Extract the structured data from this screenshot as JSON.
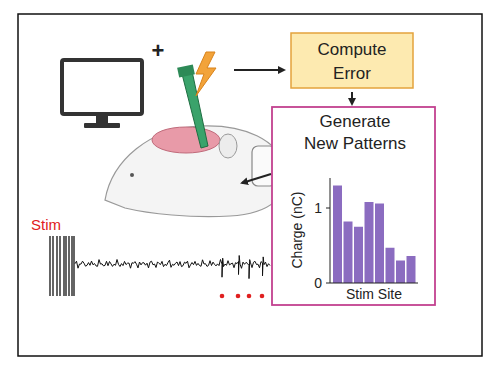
{
  "plus": "+",
  "compute_error": [
    "Compute",
    "Error"
  ],
  "generate_patterns": [
    "Generate",
    "New Patterns"
  ],
  "stim_label": "Stim",
  "chart_data": {
    "type": "bar",
    "categories": [
      null,
      null,
      null,
      null,
      null,
      null,
      null,
      null
    ],
    "values": [
      1.3,
      0.82,
      0.75,
      1.08,
      1.06,
      0.47,
      0.3,
      0.36
    ],
    "color": "#8b6cc0",
    "ylim": [
      0,
      1.4
    ],
    "yticks": [
      0,
      1
    ],
    "ylabel": "Charge (nC)",
    "xlabel": "Stim Site",
    "tick_labels": "y"
  }
}
